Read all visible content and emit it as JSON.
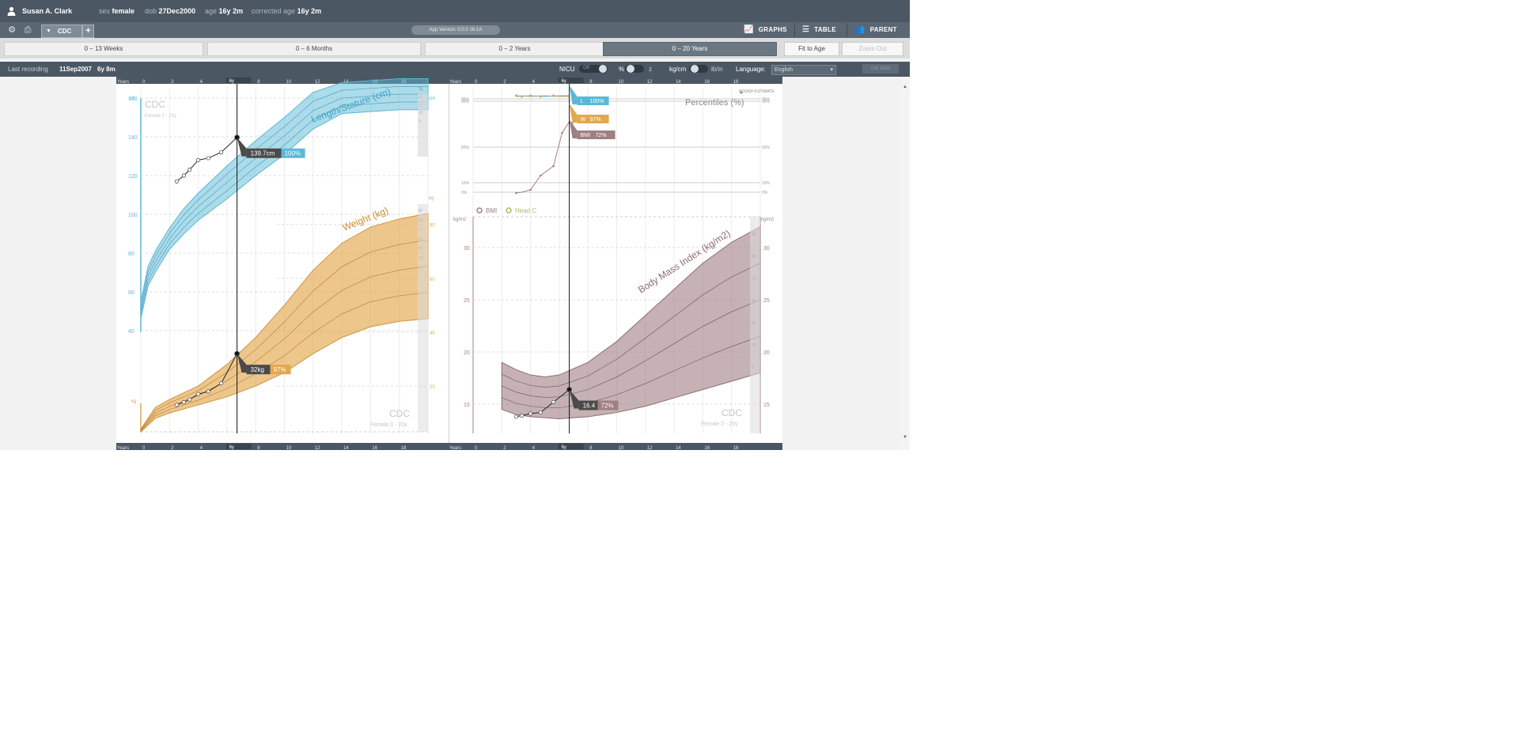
{
  "header": {
    "patient_name": "Susan A. Clark",
    "sex_label": "sex",
    "sex_value": "female",
    "dob_label": "dob",
    "dob_value": "27Dec2000",
    "age_label": "age",
    "age_value": "16y 2m",
    "corrected_age_label": "corrected age",
    "corrected_age_value": "16y 2m"
  },
  "toolbar": {
    "tab_label": "CDC",
    "add_tab": "+",
    "app_version": "App Version: 0.0.0 16-1A",
    "graphs_label": "GRAPHS",
    "table_label": "TABLE",
    "parent_label": "PARENT"
  },
  "ranges": {
    "tabs": [
      "0 – 13 Weeks",
      "0 – 6 Months",
      "0 – 2 Years",
      "0 – 20 Years"
    ],
    "active_index": 3,
    "fit_to_age": "Fit to Age",
    "zoom_out": "Zoom Out"
  },
  "status": {
    "last_recording_label": "Last recording",
    "last_recording_date": "11Sep2007",
    "last_recording_age": "6y 8m",
    "nicu_label": "NICU",
    "nicu_state": "Off",
    "percent_label": "%",
    "z_label": "z",
    "kg_cm_label": "kg/cm",
    "lb_in_label": "lb/in",
    "language_label": "Language:",
    "language_value": "English",
    "get_data": "Get Data"
  },
  "colors": {
    "length": "#5ab8d6",
    "weight": "#e3a74f",
    "bmi": "#a07f82",
    "head": "#a9c26a",
    "header_bg": "#4b5763"
  },
  "chart_data": [
    {
      "type": "line",
      "title": "Length/Stature (cm)",
      "source": "CDC",
      "subtitle": "Female 2 - 20y",
      "x_axis": {
        "label": "Years",
        "range": [
          0,
          20
        ],
        "ticks": [
          0,
          2,
          4,
          6,
          8,
          10,
          12,
          14,
          16,
          18
        ]
      },
      "y_axis": {
        "label": "cm",
        "range": [
          30,
          180
        ],
        "ticks": [
          40,
          60,
          80,
          100,
          120,
          140,
          160
        ]
      },
      "percentile_band": {
        "x": [
          0,
          0.5,
          1,
          2,
          3,
          4,
          6,
          8,
          10,
          12,
          14,
          16,
          18,
          20
        ],
        "p5": [
          46,
          63,
          70,
          82,
          90,
          97,
          108,
          120,
          131,
          144,
          152,
          153,
          154,
          154
        ],
        "p95": [
          55,
          73,
          81,
          93,
          103,
          111,
          125,
          138,
          150,
          163,
          168,
          169,
          170,
          170
        ]
      },
      "measurements": {
        "x": [
          2.5,
          3,
          3.4,
          4,
          4.7,
          5.6,
          6.7
        ],
        "y": [
          117,
          120,
          123,
          128,
          129,
          132,
          139.7
        ]
      },
      "end_labels": [
        "95",
        "75",
        "50",
        "25",
        "10",
        "5"
      ],
      "tooltip": {
        "value": "139.7cm",
        "percentile": "100%"
      }
    },
    {
      "type": "line",
      "title": "Weight (kg)",
      "source": "CDC",
      "subtitle": "Female 0 - 20y",
      "x_axis": {
        "label": "Years",
        "range": [
          0,
          20
        ]
      },
      "y_axis": {
        "label": "kg",
        "ticks": [
          20,
          40,
          60,
          80
        ]
      },
      "percentile_band": {
        "x": [
          0,
          1,
          2,
          4,
          6,
          8,
          10,
          12,
          14,
          16,
          18,
          20
        ],
        "p5": [
          3,
          8,
          10,
          13,
          16,
          20,
          25,
          32,
          38,
          42,
          44,
          45
        ],
        "p95": [
          4,
          12,
          15,
          20,
          28,
          38,
          50,
          63,
          73,
          79,
          82,
          84
        ]
      },
      "measurements": {
        "x": [
          2.5,
          3,
          3.4,
          4,
          4.7,
          5.6,
          6.7
        ],
        "y": [
          13,
          14,
          15,
          17,
          18,
          21,
          32
        ]
      },
      "end_labels": [
        "97",
        "90",
        "75",
        "50",
        "25",
        "10",
        "3"
      ],
      "tooltip": {
        "value": "32kg",
        "percentile": "97%"
      }
    },
    {
      "type": "line",
      "title": "Percentiles (%)",
      "legend": "ROUGH ESTIMATE",
      "x_axis": {
        "label": "Years",
        "range": [
          0,
          20
        ]
      },
      "y_axis": {
        "ticks": [
          "0%",
          "10%",
          "50%",
          "90%",
          "95%"
        ]
      },
      "series": [
        {
          "name": "L",
          "value_label": "100%"
        },
        {
          "name": "W",
          "value_label": "97%"
        },
        {
          "name": "BMI",
          "value_label": "72%"
        }
      ]
    },
    {
      "type": "line",
      "title": "Body Mass Index (kg/m2)",
      "source": "CDC",
      "subtitle": "Female 2 - 20y",
      "legend": [
        "BMI",
        "Head C"
      ],
      "x_axis": {
        "label": "Years",
        "range": [
          0,
          20
        ],
        "ticks": [
          0,
          2,
          4,
          6,
          8,
          10,
          12,
          14,
          16,
          18
        ]
      },
      "y_axis": {
        "label": "kg/m2",
        "range": [
          12,
          33
        ],
        "ticks": [
          15,
          20,
          25,
          30
        ]
      },
      "percentile_band": {
        "x": [
          2,
          3,
          4,
          5,
          6,
          8,
          10,
          12,
          14,
          16,
          18,
          20
        ],
        "p5": [
          14.5,
          14,
          13.8,
          13.7,
          13.6,
          13.8,
          14.2,
          14.8,
          15.6,
          16.4,
          17.2,
          18
        ],
        "p95": [
          19,
          18.3,
          17.8,
          17.6,
          17.8,
          19,
          21,
          23.5,
          26,
          28.5,
          30.5,
          32
        ]
      },
      "measurements": {
        "x": [
          3,
          3.4,
          4,
          4.7,
          5.6,
          6.7
        ],
        "y": [
          13.8,
          13.9,
          14.1,
          14.2,
          15.2,
          16.4
        ]
      },
      "end_labels": [
        "95",
        "85",
        "75",
        "50",
        "25",
        "10",
        "5"
      ],
      "tooltip": {
        "value": "16.4",
        "percentile": "72%"
      }
    }
  ],
  "current_age_label": "6y"
}
